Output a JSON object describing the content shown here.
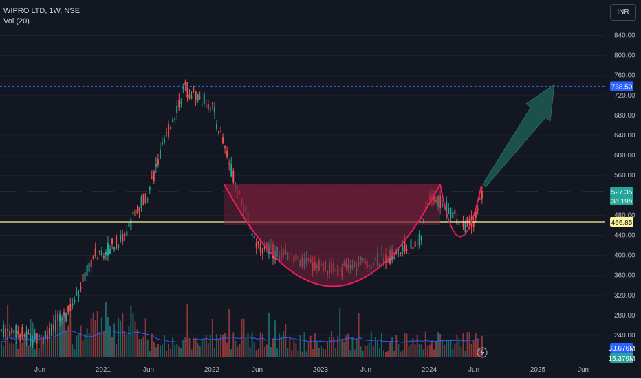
{
  "header": {
    "symbol_line": "WIPRO LTD, 1W, NSE",
    "indicator_line": "Vol (20)",
    "currency": "INR"
  },
  "colors": {
    "background": "#131722",
    "up": "#26a69a",
    "down": "#ef5350",
    "cup_fill": "#7a1f3a",
    "cup_stroke": "#e91e63",
    "arrow": "#1e5a52",
    "support_line": "#fff59d",
    "resistance_line": "#2962ff",
    "volume_ma": "#2962ff"
  },
  "chart_data": {
    "type": "line",
    "y_axis": {
      "ticks": [
        "840.00",
        "800.00",
        "760.00",
        "720.00",
        "680.00",
        "640.00",
        "600.00",
        "560.00",
        "480.00",
        "440.00",
        "400.00",
        "360.00",
        "320.00",
        "280.00",
        "240.00"
      ],
      "range": [
        215,
        870
      ]
    },
    "x_axis": {
      "ticks": [
        "Jun",
        "2021",
        "Jun",
        "2022",
        "Jun",
        "2023",
        "Jun",
        "2024",
        "Jun",
        "2025",
        "Jun"
      ]
    },
    "series": [
      {
        "x": [
          "2020-03",
          "2020-06",
          "2020-09",
          "2020-12",
          "2021-03",
          "2021-06",
          "2021-09",
          "2021-10",
          "2022-01",
          "2022-03",
          "2022-06",
          "2022-09",
          "2022-12",
          "2023-03",
          "2023-06",
          "2023-09",
          "2023-12",
          "2024-01",
          "2024-03",
          "2024-05",
          "2024-06",
          "2024-07"
        ],
        "y": [
          250,
          230,
          280,
          400,
          430,
          530,
          690,
          735,
          700,
          580,
          420,
          400,
          380,
          370,
          385,
          400,
          430,
          520,
          495,
          460,
          470,
          527
        ]
      }
    ],
    "price_labels": [
      {
        "value": 738.5,
        "label": "738.50",
        "color": "#2962ff"
      },
      {
        "value": 527.35,
        "label": "527.35",
        "sub": "3d 19h",
        "color": "#26a69a"
      },
      {
        "value": 466.85,
        "label": "466.85",
        "color": "#fff59d"
      }
    ],
    "volume_labels": [
      {
        "label": "33.676M",
        "color": "#2962ff"
      },
      {
        "label": "15.379M",
        "color": "#26a69a"
      }
    ],
    "annotations": {
      "resistance_level": 738.5,
      "support_level": 466.85,
      "pattern": "cup-and-handle"
    }
  }
}
